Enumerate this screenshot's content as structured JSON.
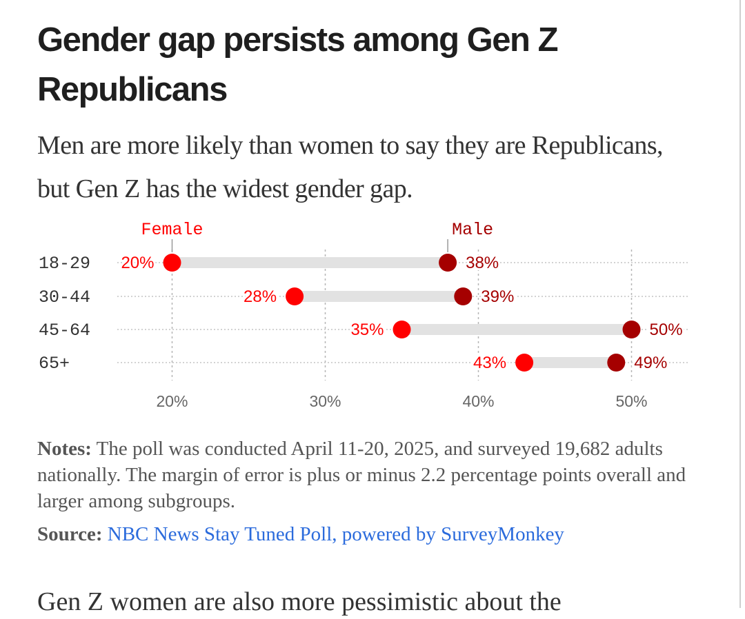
{
  "article": {
    "title": "Gender gap persists among Gen Z Republicans",
    "subtitle": "Men are more likely than women to say they are Republicans, but Gen Z has the widest gender gap.",
    "notes_label": "Notes:",
    "notes_text": " The poll was conducted April 11-20, 2025, and surveyed 19,682 adults nationally. The margin of error is plus or minus 2.2 percentage points overall and larger among subgroups.",
    "source_label": "Source:",
    "source_text": "NBC News Stay Tuned Poll, powered by SurveyMonkey",
    "next_paragraph": "Gen Z women are also more pessimistic about the"
  },
  "chart_data": {
    "type": "dot-range",
    "categories": [
      "18-29",
      "30-44",
      "45-64",
      "65+"
    ],
    "series": [
      {
        "name": "Female",
        "values": [
          20,
          28,
          35,
          43
        ],
        "color": "#ff0000"
      },
      {
        "name": "Male",
        "values": [
          38,
          39,
          50,
          49
        ],
        "color": "#a50000"
      }
    ],
    "value_suffix": "%",
    "xlim": [
      16.5,
      53.5
    ],
    "xticks": [
      20,
      30,
      40,
      50
    ],
    "xtick_labels": [
      "20%",
      "30%",
      "40%",
      "50%"
    ],
    "grid": true,
    "bar_color": "#e2e2e2"
  }
}
